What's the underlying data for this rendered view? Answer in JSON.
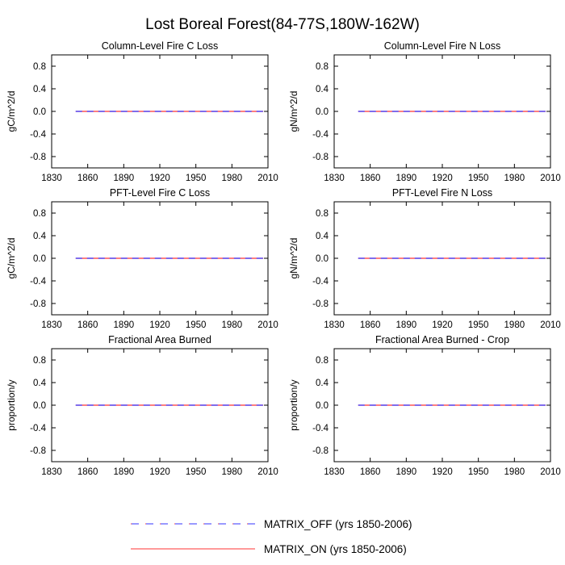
{
  "title": "Lost Boreal Forest(84-77S,180W-162W)",
  "legend": {
    "placement": "bottom-center",
    "entries": [
      {
        "label": "MATRIX_OFF (yrs 1850-2006)",
        "color": "#3333ff",
        "accent": "#ff3333",
        "style": "dashed"
      },
      {
        "label": "MATRIX_ON (yrs 1850-2006)",
        "color": "#ff3333",
        "style": "solid"
      }
    ]
  },
  "chart_data": [
    {
      "type": "line",
      "title": "Column-Level Fire C Loss",
      "ylabel": "gC/m^2/d",
      "xlim": [
        1830,
        2010
      ],
      "ylim": [
        -1,
        1
      ],
      "xticks": [
        1830,
        1860,
        1890,
        1920,
        1950,
        1980,
        2010
      ],
      "yticks": [
        0.8,
        0.4,
        0.0,
        -0.4,
        -0.8
      ],
      "ytick_labels": [
        "0.8",
        "0.4",
        "0.0",
        "-0.4",
        "-0.8"
      ],
      "series": [
        {
          "name": "MATRIX_OFF (yrs 1850-2006)",
          "x": [
            1850,
            2006
          ],
          "y": [
            0,
            0
          ]
        },
        {
          "name": "MATRIX_ON (yrs 1850-2006)",
          "x": [
            1850,
            2006
          ],
          "y": [
            0,
            0
          ]
        }
      ]
    },
    {
      "type": "line",
      "title": "Column-Level Fire N Loss",
      "ylabel": "gN/m^2/d",
      "xlim": [
        1830,
        2010
      ],
      "ylim": [
        -1,
        1
      ],
      "xticks": [
        1830,
        1860,
        1890,
        1920,
        1950,
        1980,
        2010
      ],
      "yticks": [
        0.8,
        0.4,
        0.0,
        -0.4,
        -0.8
      ],
      "ytick_labels": [
        "0.8",
        "0.4",
        "0.0",
        "-0.4",
        "-0.8"
      ],
      "series": [
        {
          "name": "MATRIX_OFF (yrs 1850-2006)",
          "x": [
            1850,
            2006
          ],
          "y": [
            0,
            0
          ]
        },
        {
          "name": "MATRIX_ON (yrs 1850-2006)",
          "x": [
            1850,
            2006
          ],
          "y": [
            0,
            0
          ]
        }
      ]
    },
    {
      "type": "line",
      "title": "PFT-Level Fire C Loss",
      "ylabel": "gC/m^2/d",
      "xlim": [
        1830,
        2010
      ],
      "ylim": [
        -1,
        1
      ],
      "xticks": [
        1830,
        1860,
        1890,
        1920,
        1950,
        1980,
        2010
      ],
      "yticks": [
        0.8,
        0.4,
        0.0,
        -0.4,
        -0.8
      ],
      "ytick_labels": [
        "0.8",
        "0.4",
        "0.0",
        "-0.4",
        "-0.8"
      ],
      "series": [
        {
          "name": "MATRIX_OFF (yrs 1850-2006)",
          "x": [
            1850,
            2006
          ],
          "y": [
            0,
            0
          ]
        },
        {
          "name": "MATRIX_ON (yrs 1850-2006)",
          "x": [
            1850,
            2006
          ],
          "y": [
            0,
            0
          ]
        }
      ]
    },
    {
      "type": "line",
      "title": "PFT-Level Fire N Loss",
      "ylabel": "gN/m^2/d",
      "xlim": [
        1830,
        2010
      ],
      "ylim": [
        -1,
        1
      ],
      "xticks": [
        1830,
        1860,
        1890,
        1920,
        1950,
        1980,
        2010
      ],
      "yticks": [
        0.8,
        0.4,
        0.0,
        -0.4,
        -0.8
      ],
      "ytick_labels": [
        "0.8",
        "0.4",
        "0.0",
        "-0.4",
        "-0.8"
      ],
      "series": [
        {
          "name": "MATRIX_OFF (yrs 1850-2006)",
          "x": [
            1850,
            2006
          ],
          "y": [
            0,
            0
          ]
        },
        {
          "name": "MATRIX_ON (yrs 1850-2006)",
          "x": [
            1850,
            2006
          ],
          "y": [
            0,
            0
          ]
        }
      ]
    },
    {
      "type": "line",
      "title": "Fractional Area Burned",
      "ylabel": "proportion/y",
      "xlim": [
        1830,
        2010
      ],
      "ylim": [
        -1,
        1
      ],
      "xticks": [
        1830,
        1860,
        1890,
        1920,
        1950,
        1980,
        2010
      ],
      "yticks": [
        0.8,
        0.4,
        0.0,
        -0.4,
        -0.8
      ],
      "ytick_labels": [
        "0.8",
        "0.4",
        "0.0",
        "-0.4",
        "-0.8"
      ],
      "series": [
        {
          "name": "MATRIX_OFF (yrs 1850-2006)",
          "x": [
            1850,
            2006
          ],
          "y": [
            0,
            0
          ]
        },
        {
          "name": "MATRIX_ON (yrs 1850-2006)",
          "x": [
            1850,
            2006
          ],
          "y": [
            0,
            0
          ]
        }
      ]
    },
    {
      "type": "line",
      "title": "Fractional Area Burned - Crop",
      "ylabel": "proportion/y",
      "xlim": [
        1830,
        2010
      ],
      "ylim": [
        -1,
        1
      ],
      "xticks": [
        1830,
        1860,
        1890,
        1920,
        1950,
        1980,
        2010
      ],
      "yticks": [
        0.8,
        0.4,
        0.0,
        -0.4,
        -0.8
      ],
      "ytick_labels": [
        "0.8",
        "0.4",
        "0.0",
        "-0.4",
        "-0.8"
      ],
      "series": [
        {
          "name": "MATRIX_OFF (yrs 1850-2006)",
          "x": [
            1850,
            2006
          ],
          "y": [
            0,
            0
          ]
        },
        {
          "name": "MATRIX_ON (yrs 1850-2006)",
          "x": [
            1850,
            2006
          ],
          "y": [
            0,
            0
          ]
        }
      ]
    }
  ]
}
